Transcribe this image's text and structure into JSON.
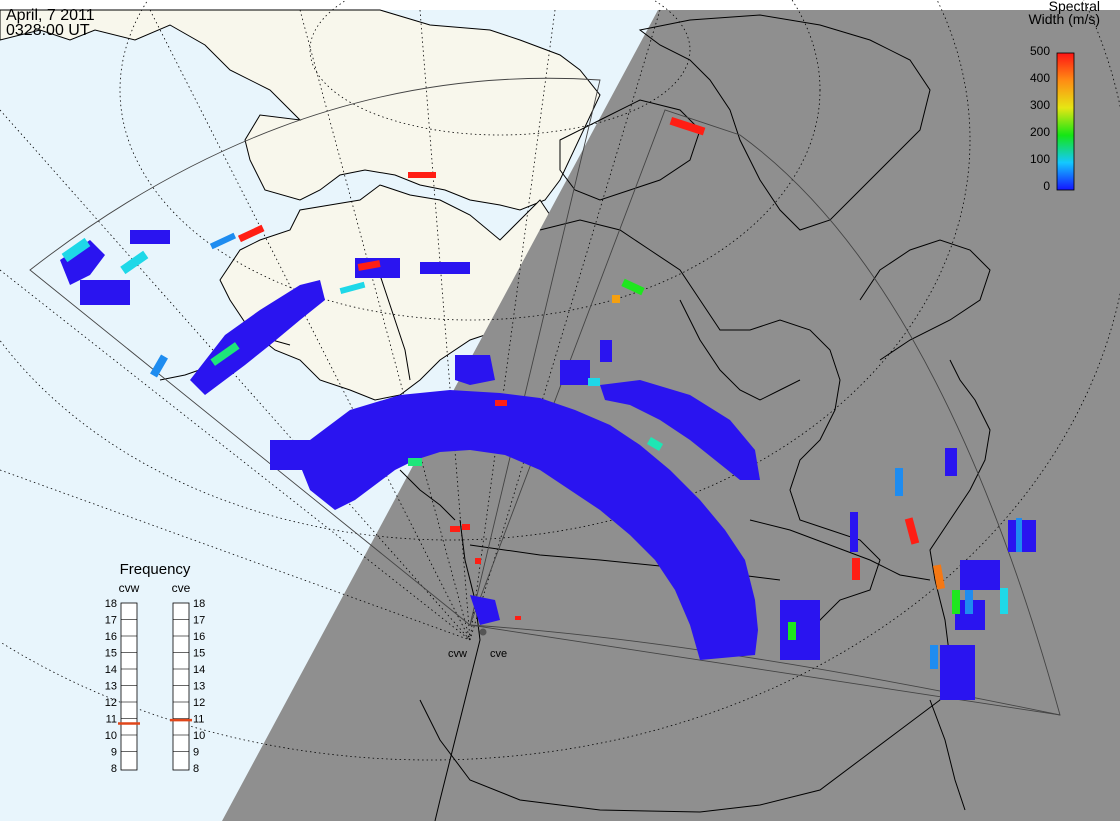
{
  "header": {
    "date": "April, 7 2011",
    "time": "0328:00 UT"
  },
  "colorbar": {
    "title_line1": "Spectral",
    "title_line2": "Width (m/s)",
    "ticks": [
      "500",
      "400",
      "300",
      "200",
      "100",
      "0"
    ]
  },
  "stations": [
    {
      "code": "cvw"
    },
    {
      "code": "cve"
    }
  ],
  "frequency_panel": {
    "title": "Frequency",
    "columns": [
      {
        "label": "cvw",
        "value_mhz": 10.7
      },
      {
        "label": "cve",
        "value_mhz": 10.9
      }
    ],
    "ticks": [
      "18",
      "17",
      "16",
      "15",
      "14",
      "13",
      "12",
      "11",
      "10",
      "9",
      "8"
    ],
    "marker_color": "#e0461a"
  },
  "colors": {
    "ocean": "#e8f5fc",
    "land_day": "#f8f7ec",
    "night": "#8f8f8f",
    "echo_low": "#2a14f0"
  }
}
